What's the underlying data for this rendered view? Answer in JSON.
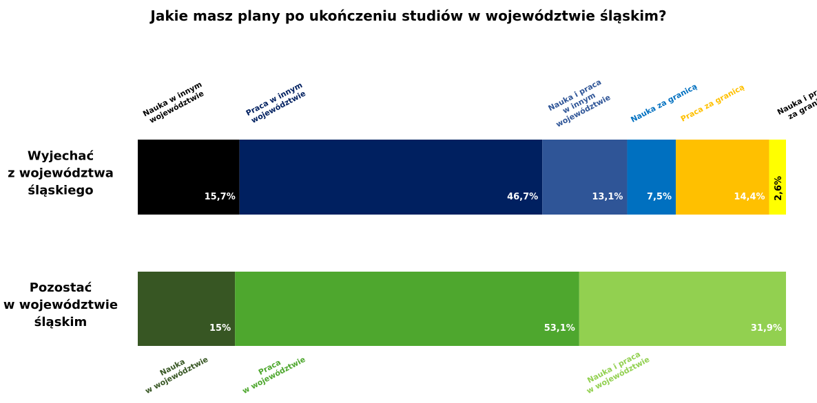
{
  "title": "Jakie masz plany po ukończeniu studiów w województwie śląskim?",
  "chart_data": [
    {
      "type": "stacked-bar",
      "category": "Wyjechać\nz województwa\nśląskiego",
      "label_side": "top",
      "series": [
        {
          "name": "Nauka w innym\nwojewództwie",
          "color": "#000000",
          "values": [
            15.7
          ],
          "value_labels": [
            "15,7%"
          ]
        },
        {
          "name": "Praca w innym\nwojewództwie",
          "color": "#002060",
          "values": [
            46.7
          ],
          "value_labels": [
            "46,7%"
          ]
        },
        {
          "name": "Nauka i praca\nw innym\nwojewództwie",
          "color": "#2f5597",
          "values": [
            13.1
          ],
          "value_labels": [
            "13,1%"
          ]
        },
        {
          "name": "Nauka za granicą",
          "color": "#0070c0",
          "values": [
            7.5
          ],
          "value_labels": [
            "7,5%"
          ]
        },
        {
          "name": "Praca za granicą",
          "color": "#ffc000",
          "values": [
            14.4
          ],
          "value_labels": [
            "14,4%"
          ]
        },
        {
          "name": "Nauka i praca\nza granicą",
          "color": "#ffff00",
          "label_color": "#000000",
          "values": [
            2.6
          ],
          "value_labels": [
            "2,6%"
          ]
        }
      ]
    },
    {
      "type": "stacked-bar",
      "category": "Pozostać\nw województwie\nśląskim",
      "label_side": "bottom",
      "series": [
        {
          "name": "Nauka\nw województwie",
          "color": "#375623",
          "values": [
            15
          ],
          "value_labels": [
            "15%"
          ]
        },
        {
          "name": "Praca\nw województwie",
          "color": "#4ea72e",
          "values": [
            53.1
          ],
          "value_labels": [
            "53,1%"
          ]
        },
        {
          "name": "Nauka i praca\nw województwie",
          "color": "#92d050",
          "values": [
            31.9
          ],
          "value_labels": [
            "31,9%"
          ]
        }
      ]
    }
  ]
}
